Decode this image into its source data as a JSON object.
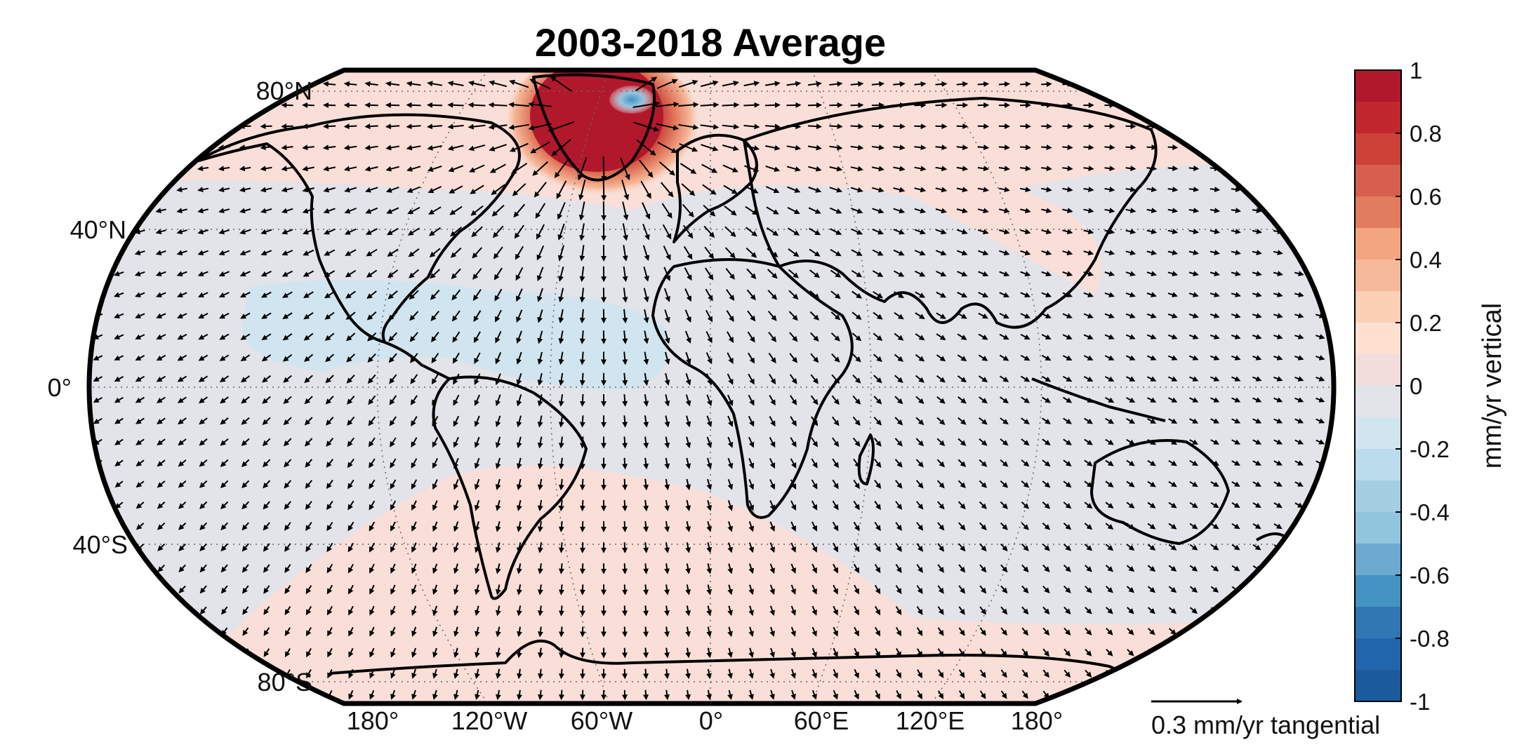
{
  "title": "2003-2018 Average",
  "latitude_labels": [
    "80°N",
    "40°N",
    "0°",
    "40°S",
    "80°S"
  ],
  "longitude_labels": [
    "180°",
    "120°W",
    "60°W",
    "0°",
    "60°E",
    "120°E",
    "180°"
  ],
  "colorbar": {
    "label": "mm/yr vertical",
    "ticks": [
      "1",
      "0.8",
      "0.6",
      "0.4",
      "0.2",
      "0",
      "-0.2",
      "-0.4",
      "-0.6",
      "-0.8",
      "-1"
    ],
    "colors": [
      "#b2182b",
      "#c1272d",
      "#cc4138",
      "#d6604d",
      "#e27c5f",
      "#f4a582",
      "#f6b99a",
      "#fbd0b5",
      "#fde0d0",
      "#f2dcdc",
      "#e3e3ea",
      "#d1e5f0",
      "#bbdcec",
      "#a5cee3",
      "#92c5de",
      "#6ea9d1",
      "#4393c3",
      "#3077b4",
      "#2166ac",
      "#1c5a9e"
    ]
  },
  "scale_arrow": {
    "label": "0.3 mm/yr tangential"
  },
  "colors": {
    "background_ocean": "#e3e3ea",
    "positive_tint": "#f9dfd7",
    "negative_tint": "#d1e5f0",
    "greenland_high": "#b2182b",
    "arrows": "#000000"
  }
}
